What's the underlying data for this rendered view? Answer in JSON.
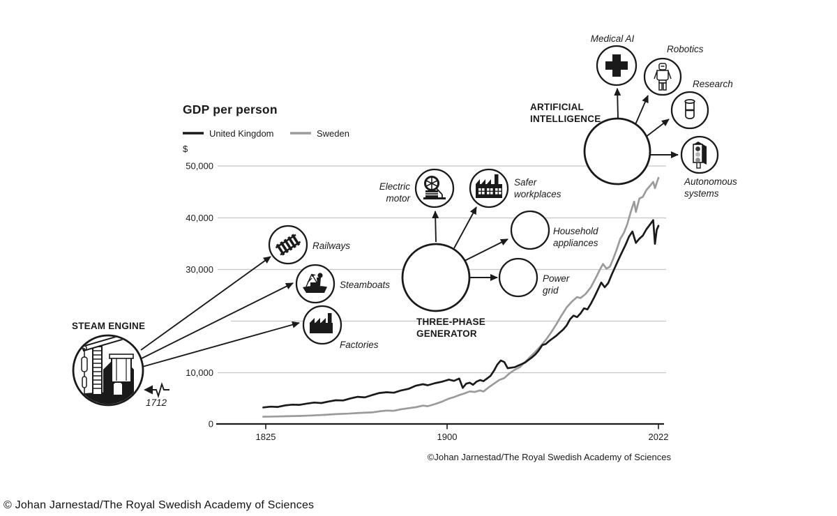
{
  "chart_data": {
    "type": "line",
    "title": "GDP per person",
    "unit_label": "$",
    "x_tick_labels": [
      "1825",
      "1900",
      "2022"
    ],
    "x_tick_years": [
      1825,
      1900,
      2022
    ],
    "y_tick_labels": [
      "0",
      "10,000",
      "30,000",
      "40,000",
      "50,000"
    ],
    "y_gridline_values": [
      0,
      10000,
      20000,
      30000,
      40000,
      50000
    ],
    "ylim": [
      0,
      50000
    ],
    "xlim": [
      1824,
      2022
    ],
    "legend_position": "top-left",
    "grid": true,
    "series": [
      {
        "name": "United Kingdom",
        "color": "#1a1a1a",
        "points": [
          [
            1824,
            3200
          ],
          [
            1827,
            3350
          ],
          [
            1830,
            3300
          ],
          [
            1833,
            3600
          ],
          [
            1836,
            3750
          ],
          [
            1839,
            3700
          ],
          [
            1842,
            3950
          ],
          [
            1845,
            4150
          ],
          [
            1848,
            4050
          ],
          [
            1851,
            4350
          ],
          [
            1854,
            4600
          ],
          [
            1857,
            4550
          ],
          [
            1860,
            4950
          ],
          [
            1863,
            5250
          ],
          [
            1866,
            5150
          ],
          [
            1869,
            5600
          ],
          [
            1872,
            6000
          ],
          [
            1875,
            6150
          ],
          [
            1878,
            6050
          ],
          [
            1881,
            6500
          ],
          [
            1884,
            6800
          ],
          [
            1887,
            7400
          ],
          [
            1890,
            7700
          ],
          [
            1892,
            7500
          ],
          [
            1895,
            7900
          ],
          [
            1898,
            8200
          ],
          [
            1901,
            8600
          ],
          [
            1904,
            8350
          ],
          [
            1907,
            8800
          ],
          [
            1909,
            7000
          ],
          [
            1911,
            7800
          ],
          [
            1913,
            8000
          ],
          [
            1915,
            7600
          ],
          [
            1917,
            8200
          ],
          [
            1919,
            8500
          ],
          [
            1921,
            8300
          ],
          [
            1923,
            8800
          ],
          [
            1925,
            9300
          ],
          [
            1927,
            10300
          ],
          [
            1929,
            11500
          ],
          [
            1931,
            12300
          ],
          [
            1933,
            12000
          ],
          [
            1935,
            10800
          ],
          [
            1937,
            10900
          ],
          [
            1939,
            11000
          ],
          [
            1941,
            11300
          ],
          [
            1943,
            11600
          ],
          [
            1945,
            11900
          ],
          [
            1947,
            12400
          ],
          [
            1949,
            12900
          ],
          [
            1951,
            13500
          ],
          [
            1953,
            14300
          ],
          [
            1955,
            15300
          ],
          [
            1957,
            15500
          ],
          [
            1959,
            16100
          ],
          [
            1961,
            16600
          ],
          [
            1963,
            17100
          ],
          [
            1965,
            17700
          ],
          [
            1967,
            18300
          ],
          [
            1969,
            19100
          ],
          [
            1971,
            20300
          ],
          [
            1973,
            21000
          ],
          [
            1975,
            20700
          ],
          [
            1977,
            21400
          ],
          [
            1979,
            22400
          ],
          [
            1981,
            22200
          ],
          [
            1983,
            23300
          ],
          [
            1985,
            24600
          ],
          [
            1987,
            26000
          ],
          [
            1989,
            27400
          ],
          [
            1991,
            26500
          ],
          [
            1993,
            27300
          ],
          [
            1995,
            28900
          ],
          [
            1997,
            30400
          ],
          [
            1999,
            31900
          ],
          [
            2001,
            33300
          ],
          [
            2003,
            34700
          ],
          [
            2005,
            36300
          ],
          [
            2007,
            37300
          ],
          [
            2009,
            35100
          ],
          [
            2011,
            35900
          ],
          [
            2013,
            36500
          ],
          [
            2015,
            37700
          ],
          [
            2017,
            38600
          ],
          [
            2019,
            39500
          ],
          [
            2020,
            34900
          ],
          [
            2021,
            37600
          ],
          [
            2022,
            38400
          ]
        ]
      },
      {
        "name": "Sweden",
        "color": "#9b9b9b",
        "points": [
          [
            1824,
            1400
          ],
          [
            1829,
            1450
          ],
          [
            1834,
            1500
          ],
          [
            1839,
            1550
          ],
          [
            1844,
            1650
          ],
          [
            1849,
            1750
          ],
          [
            1854,
            1900
          ],
          [
            1859,
            2000
          ],
          [
            1864,
            2150
          ],
          [
            1869,
            2250
          ],
          [
            1872,
            2450
          ],
          [
            1875,
            2600
          ],
          [
            1878,
            2550
          ],
          [
            1881,
            2850
          ],
          [
            1884,
            3050
          ],
          [
            1887,
            3250
          ],
          [
            1890,
            3550
          ],
          [
            1892,
            3450
          ],
          [
            1895,
            3850
          ],
          [
            1898,
            4350
          ],
          [
            1901,
            4900
          ],
          [
            1904,
            5200
          ],
          [
            1907,
            5600
          ],
          [
            1910,
            5900
          ],
          [
            1913,
            6300
          ],
          [
            1916,
            6200
          ],
          [
            1919,
            6500
          ],
          [
            1921,
            6300
          ],
          [
            1924,
            7100
          ],
          [
            1927,
            7800
          ],
          [
            1930,
            8500
          ],
          [
            1933,
            8900
          ],
          [
            1936,
            9800
          ],
          [
            1939,
            10500
          ],
          [
            1942,
            11000
          ],
          [
            1945,
            12000
          ],
          [
            1948,
            13000
          ],
          [
            1951,
            14000
          ],
          [
            1954,
            15100
          ],
          [
            1957,
            16300
          ],
          [
            1960,
            17700
          ],
          [
            1963,
            19300
          ],
          [
            1966,
            21000
          ],
          [
            1969,
            22600
          ],
          [
            1972,
            23700
          ],
          [
            1975,
            24600
          ],
          [
            1977,
            24400
          ],
          [
            1980,
            25200
          ],
          [
            1983,
            26500
          ],
          [
            1986,
            28400
          ],
          [
            1988,
            29800
          ],
          [
            1990,
            31000
          ],
          [
            1992,
            30100
          ],
          [
            1994,
            30500
          ],
          [
            1996,
            32100
          ],
          [
            1998,
            33900
          ],
          [
            2000,
            35900
          ],
          [
            2002,
            37000
          ],
          [
            2004,
            38700
          ],
          [
            2006,
            41100
          ],
          [
            2008,
            43100
          ],
          [
            2009,
            41100
          ],
          [
            2011,
            43700
          ],
          [
            2013,
            44000
          ],
          [
            2015,
            45300
          ],
          [
            2017,
            46100
          ],
          [
            2019,
            46900
          ],
          [
            2020,
            45700
          ],
          [
            2022,
            47700
          ]
        ]
      }
    ],
    "attribution": "©Johan Jarnestad/The Royal Swedish Academy of Sciences"
  },
  "annotations": {
    "steam_engine": {
      "title": "STEAM ENGINE",
      "year_label": "1712"
    },
    "railways": {
      "label": "Railways"
    },
    "steamboats": {
      "label": "Steamboats"
    },
    "factories": {
      "label": "Factories"
    },
    "three_phase_generator": {
      "title_line1": "THREE-PHASE",
      "title_line2": "GENERATOR"
    },
    "electric_motor": {
      "label_line1": "Electric",
      "label_line2": "motor"
    },
    "safer_workplaces": {
      "label_line1": "Safer",
      "label_line2": "workplaces"
    },
    "household_appliances": {
      "label_line1": "Household",
      "label_line2": "appliances"
    },
    "power_grid": {
      "label_line1": "Power",
      "label_line2": "grid"
    },
    "artificial_intelligence": {
      "title_line1": "ARTIFICIAL",
      "title_line2": "INTELLIGENCE"
    },
    "medical_ai": {
      "label": "Medical AI"
    },
    "robotics": {
      "label": "Robotics"
    },
    "research": {
      "label": "Research"
    },
    "autonomous_systems": {
      "label_line1": "Autonomous",
      "label_line2": "systems"
    }
  },
  "credits": {
    "chart_attribution": "©Johan Jarnestad/The Royal Swedish Academy of Sciences",
    "footer": "© Johan Jarnestad/The Royal Swedish Academy of Sciences"
  },
  "colors": {
    "grid": "#c5c5c5",
    "axis": "#1a1a1a",
    "uk_line": "#1a1a1a",
    "sweden_line": "#9b9b9b"
  }
}
